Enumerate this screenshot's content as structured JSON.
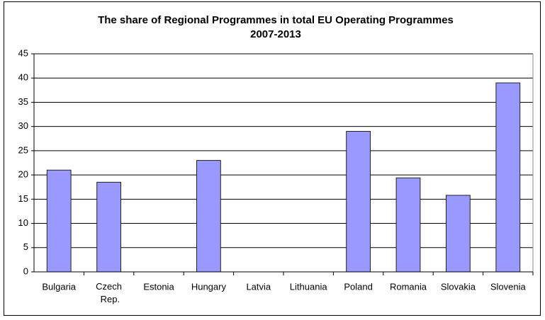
{
  "chart_data": {
    "type": "bar",
    "title": "The share of Regional Programmes in total EU Operating Programmes",
    "subtitle": "2007-2013",
    "categories": [
      "Bulgaria",
      "Czech Rep.",
      "Estonia",
      "Hungary",
      "Latvia",
      "Lithuania",
      "Poland",
      "Romania",
      "Slovakia",
      "Slovenia"
    ],
    "values": [
      21,
      18.5,
      null,
      23,
      null,
      null,
      29,
      19.4,
      15.8,
      39
    ],
    "color": "#9999ff",
    "ylim": [
      0,
      45
    ],
    "yticks": [
      0,
      5,
      10,
      15,
      20,
      25,
      30,
      35,
      40,
      45
    ],
    "grid": true
  }
}
